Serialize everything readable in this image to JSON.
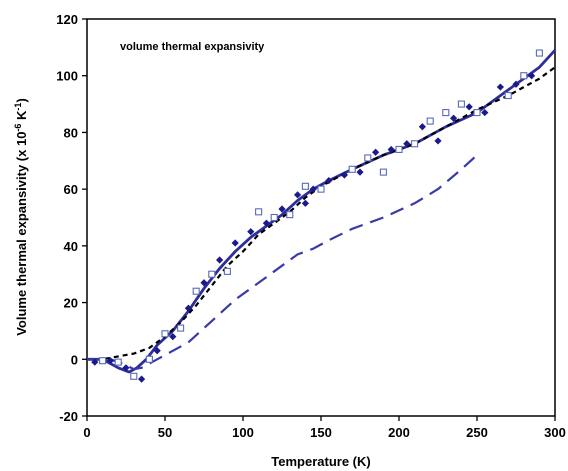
{
  "chart_data": {
    "type": "scatter",
    "title": "",
    "annotation": "volume thermal expansivity",
    "xlabel": "Temperature (K)",
    "ylabel_main": "Volume thermal expansivity (x 10",
    "ylabel_sup1": "-6",
    "ylabel_mid": " K",
    "ylabel_sup2": "-1",
    "ylabel_end": ")",
    "xlim": [
      0,
      300
    ],
    "ylim": [
      -20,
      120
    ],
    "xticks": [
      0,
      50,
      100,
      150,
      200,
      250,
      300
    ],
    "yticks": [
      -20,
      0,
      20,
      40,
      60,
      80,
      100,
      120
    ],
    "grid": false,
    "colors": {
      "navy": "#1a1a8c",
      "solid_line": "#2e2e9a",
      "dashed_blue": "#3a3aa8",
      "open_square": "#5a6ab8",
      "black": "#000000"
    },
    "series": [
      {
        "marker": "filled-diamond",
        "color": "#1a1a8c",
        "points": [
          [
            5,
            -1
          ],
          [
            10,
            -0.5
          ],
          [
            15,
            -0.5
          ],
          [
            25,
            -3
          ],
          [
            35,
            -7
          ],
          [
            45,
            3
          ],
          [
            55,
            8
          ],
          [
            65,
            18
          ],
          [
            75,
            27
          ],
          [
            85,
            35
          ],
          [
            95,
            41
          ],
          [
            105,
            45
          ],
          [
            115,
            48
          ],
          [
            125,
            53
          ],
          [
            135,
            58
          ],
          [
            140,
            55
          ],
          [
            145,
            60
          ],
          [
            155,
            63
          ],
          [
            165,
            65
          ],
          [
            175,
            66
          ],
          [
            185,
            73
          ],
          [
            195,
            74
          ],
          [
            205,
            76
          ],
          [
            215,
            82
          ],
          [
            225,
            77
          ],
          [
            235,
            85
          ],
          [
            245,
            89
          ],
          [
            255,
            87
          ],
          [
            265,
            96
          ],
          [
            275,
            97
          ],
          [
            285,
            100
          ]
        ]
      },
      {
        "marker": "open-square",
        "color": "#5a6ab8",
        "points": [
          [
            10,
            -0.5
          ],
          [
            20,
            -1
          ],
          [
            30,
            -6
          ],
          [
            40,
            0
          ],
          [
            50,
            9
          ],
          [
            60,
            11
          ],
          [
            70,
            24
          ],
          [
            80,
            30
          ],
          [
            90,
            31
          ],
          [
            110,
            52
          ],
          [
            120,
            50
          ],
          [
            130,
            51
          ],
          [
            140,
            61
          ],
          [
            150,
            60
          ],
          [
            170,
            67
          ],
          [
            180,
            71
          ],
          [
            190,
            66
          ],
          [
            200,
            74
          ],
          [
            210,
            76
          ],
          [
            220,
            84
          ],
          [
            230,
            87
          ],
          [
            240,
            90
          ],
          [
            250,
            87
          ],
          [
            270,
            93
          ],
          [
            280,
            100
          ],
          [
            290,
            108
          ]
        ]
      },
      {
        "style": "solid",
        "color": "#2e2e9a",
        "points": [
          [
            0,
            0
          ],
          [
            10,
            0
          ],
          [
            20,
            -3
          ],
          [
            27,
            -4.5
          ],
          [
            32,
            -3
          ],
          [
            38,
            0
          ],
          [
            45,
            5
          ],
          [
            55,
            10
          ],
          [
            65,
            17
          ],
          [
            75,
            25
          ],
          [
            85,
            32
          ],
          [
            95,
            38
          ],
          [
            105,
            43
          ],
          [
            115,
            47
          ],
          [
            125,
            51
          ],
          [
            135,
            56
          ],
          [
            145,
            60
          ],
          [
            155,
            63
          ],
          [
            170,
            67
          ],
          [
            190,
            72
          ],
          [
            210,
            76
          ],
          [
            230,
            82
          ],
          [
            250,
            87
          ],
          [
            270,
            95
          ],
          [
            290,
            103
          ],
          [
            300,
            109
          ]
        ]
      },
      {
        "style": "short-dash",
        "color": "#000000",
        "points": [
          [
            0,
            0
          ],
          [
            10,
            0
          ],
          [
            20,
            1
          ],
          [
            30,
            2
          ],
          [
            40,
            4
          ],
          [
            50,
            8
          ],
          [
            60,
            13
          ],
          [
            70,
            19
          ],
          [
            80,
            26
          ],
          [
            90,
            33
          ],
          [
            100,
            38
          ],
          [
            110,
            44
          ],
          [
            120,
            48
          ],
          [
            130,
            52
          ],
          [
            140,
            57
          ],
          [
            150,
            61
          ],
          [
            170,
            67
          ],
          [
            190,
            72
          ],
          [
            210,
            76
          ],
          [
            230,
            82
          ],
          [
            250,
            88
          ],
          [
            270,
            93
          ],
          [
            290,
            99
          ],
          [
            300,
            103
          ]
        ]
      },
      {
        "style": "long-dash",
        "color": "#3a3aa8",
        "points": [
          [
            0,
            0
          ],
          [
            15,
            0
          ],
          [
            25,
            -2
          ],
          [
            30,
            -3.5
          ],
          [
            35,
            -3
          ],
          [
            45,
            0
          ],
          [
            55,
            3
          ],
          [
            65,
            6
          ],
          [
            75,
            11
          ],
          [
            85,
            16
          ],
          [
            95,
            21
          ],
          [
            105,
            25
          ],
          [
            115,
            29
          ],
          [
            125,
            33
          ],
          [
            135,
            37
          ],
          [
            145,
            39
          ],
          [
            155,
            42
          ],
          [
            170,
            46
          ],
          [
            190,
            50
          ],
          [
            210,
            55
          ],
          [
            225,
            60
          ],
          [
            240,
            67
          ],
          [
            250,
            72
          ]
        ]
      }
    ]
  }
}
